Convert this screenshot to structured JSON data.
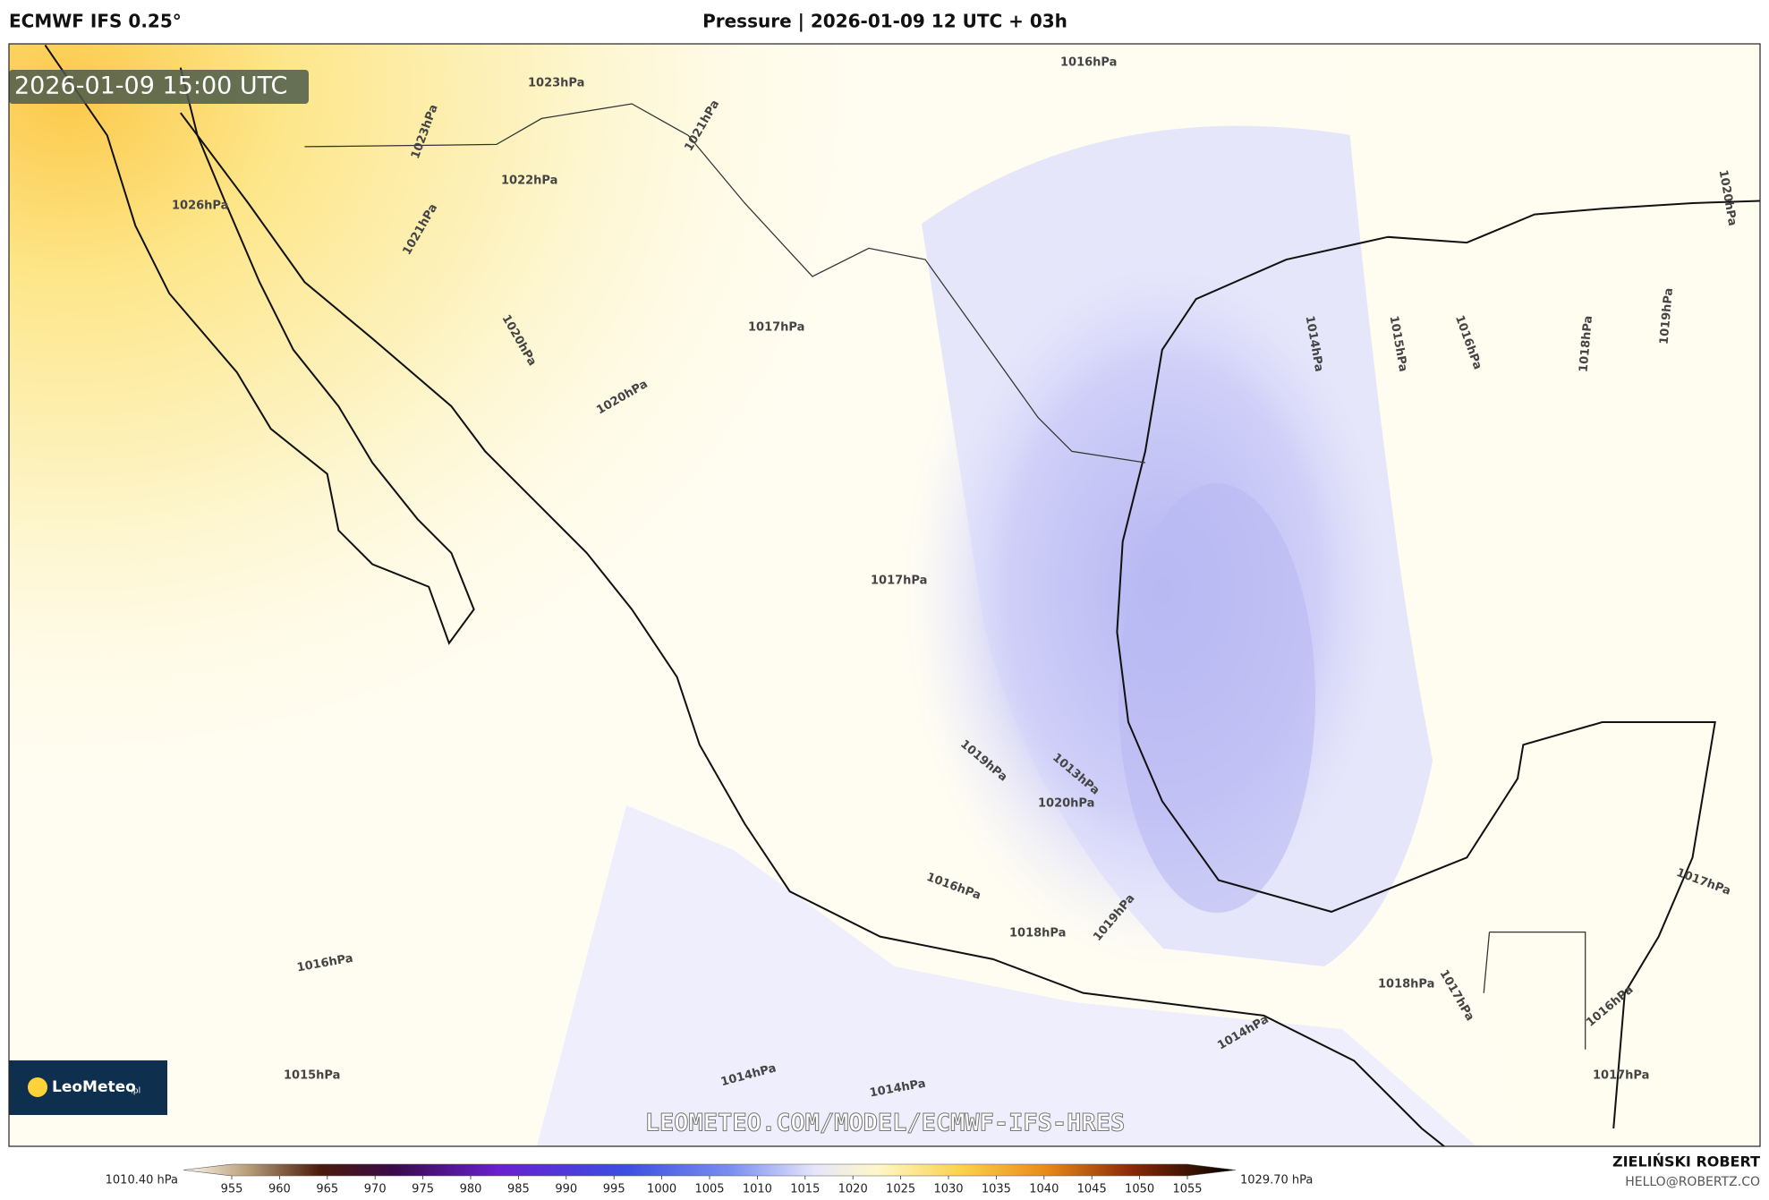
{
  "header": {
    "model": "ECMWF IFS 0.25°",
    "title": "Pressure | 2026-01-09 12 UTC + 03h"
  },
  "map": {
    "valid_time": "2026-01-09 15:00 UTC",
    "watermark": "LEOMETEO.COM/MODEL/ECMWF-IFS-HRES",
    "logo": {
      "name": "LeoMeteo",
      "suffix": ".pl"
    },
    "contour_labels": [
      "1016hPa",
      "1023hPa",
      "1021hPa",
      "1023hPa",
      "1022hPa",
      "1026hPa",
      "1021hPa",
      "1020hPa",
      "1017hPa",
      "1020hPa",
      "1017hPa",
      "1014hPa",
      "1015hPa",
      "1016hPa",
      "1018hPa",
      "1019hPa",
      "1019hPa",
      "1013hPa",
      "1020hPa",
      "1016hPa",
      "1018hPa",
      "1019hPa",
      "1016hPa",
      "1018hPa",
      "1017hPa",
      "1014hPa",
      "1015hPa",
      "1014hPa",
      "1014hPa",
      "1017hPa",
      "1016hPa",
      "1017hPa",
      "1020hPa"
    ]
  },
  "colorbar": {
    "min_label": "1010.40 hPa",
    "max_label": "1029.70 hPa",
    "ticks": [
      "955",
      "960",
      "965",
      "970",
      "975",
      "980",
      "985",
      "990",
      "995",
      "1000",
      "1005",
      "1010",
      "1015",
      "1020",
      "1025",
      "1030",
      "1035",
      "1040",
      "1045",
      "1050",
      "1055"
    ]
  },
  "footer": {
    "author": "ZIELIŃSKI ROBERT",
    "contact": "HELLO@ROBERTZ.CO"
  }
}
